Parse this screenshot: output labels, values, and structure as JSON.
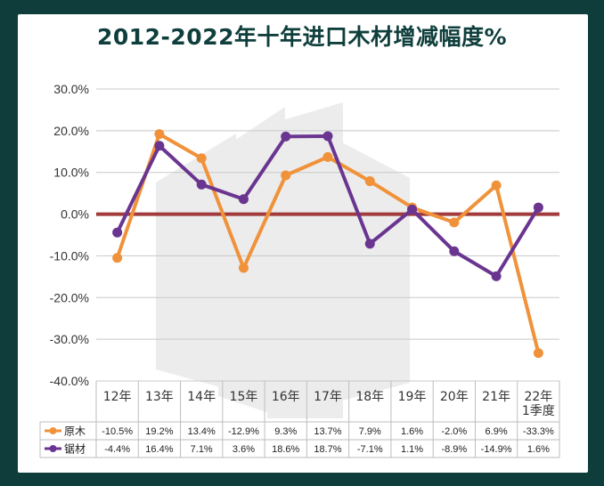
{
  "chart_data": {
    "type": "line",
    "title": "2012-2022年十年进口木材增减幅度%",
    "categories": [
      "12年",
      "13年",
      "14年",
      "15年",
      "16年",
      "17年",
      "18年",
      "19年",
      "20年",
      "21年",
      "22年\n1季度"
    ],
    "ylim": [
      -40,
      30
    ],
    "yticks": [
      "-40.0%",
      "-30.0%",
      "-20.0%",
      "-10.0%",
      "0.0%",
      "10.0%",
      "20.0%",
      "30.0%"
    ],
    "grid": true,
    "series": [
      {
        "name": "原木",
        "color": "#f0923a",
        "values": [
          -10.5,
          19.2,
          13.4,
          -12.9,
          9.3,
          13.7,
          7.9,
          1.6,
          -2.0,
          6.9,
          -33.3
        ],
        "labels": [
          "-10.5%",
          "19.2%",
          "13.4%",
          "-12.9%",
          "9.3%",
          "13.7%",
          "7.9%",
          "1.6%",
          "-2.0%",
          "6.9%",
          "-33.3%"
        ]
      },
      {
        "name": "锯材",
        "color": "#6a3590",
        "values": [
          -4.4,
          16.4,
          7.1,
          3.6,
          18.6,
          18.7,
          -7.1,
          1.1,
          -8.9,
          -14.9,
          1.6
        ],
        "labels": [
          "-4.4%",
          "16.4%",
          "7.1%",
          "3.6%",
          "18.6%",
          "18.7%",
          "-7.1%",
          "1.1%",
          "-8.9%",
          "-14.9%",
          "1.6%"
        ]
      }
    ],
    "zero_line_color": "#a23b3b"
  }
}
